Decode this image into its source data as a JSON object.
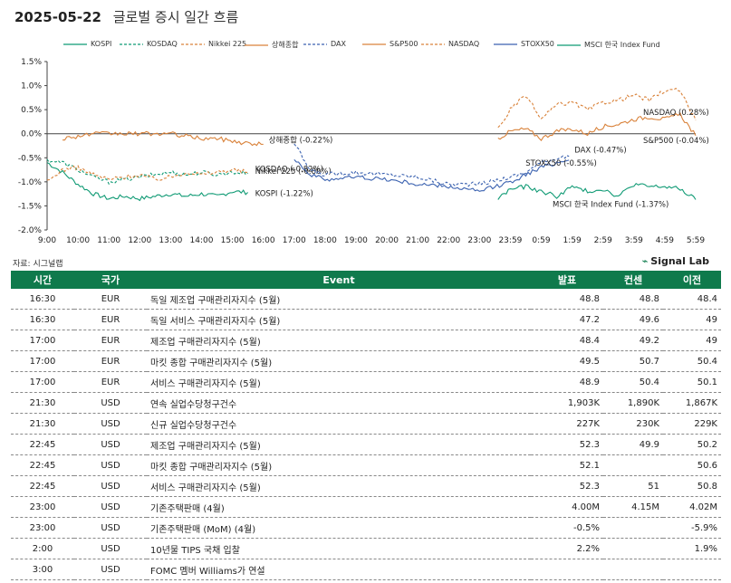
{
  "header": {
    "date": "2025-05-22",
    "title": "글로벌 증시 일간 흐름"
  },
  "source": "자료: 시그널랩",
  "brand": "Signal Lab",
  "chart_data": {
    "type": "line",
    "ylim": [
      -2.0,
      1.5
    ],
    "yticks": [
      "1.5%",
      "1.0%",
      "0.5%",
      "0.0%",
      "-0.5%",
      "-1.0%",
      "-1.5%",
      "-2.0%"
    ],
    "ytick_values": [
      1.5,
      1.0,
      0.5,
      0.0,
      -0.5,
      -1.0,
      -1.5,
      -2.0
    ],
    "x_labels": [
      "9:00",
      "10:00",
      "11:00",
      "12:00",
      "13:00",
      "14:00",
      "15:00",
      "16:00",
      "17:00",
      "18:00",
      "19:00",
      "20:00",
      "21:00",
      "22:00",
      "23:00",
      "23:59",
      "0:59",
      "1:59",
      "2:59",
      "3:59",
      "4:59",
      "5:59"
    ],
    "series": [
      {
        "name": "KOSPI",
        "color": "#0f9a74",
        "dash": "",
        "start": 0,
        "end": 6.5,
        "anchors": [
          [
            0,
            -0.6
          ],
          [
            0.5,
            -0.8
          ],
          [
            1,
            -1.05
          ],
          [
            1.5,
            -1.25
          ],
          [
            2,
            -1.35
          ],
          [
            2.5,
            -1.3
          ],
          [
            3,
            -1.35
          ],
          [
            3.5,
            -1.3
          ],
          [
            4,
            -1.25
          ],
          [
            4.5,
            -1.3
          ],
          [
            5,
            -1.25
          ],
          [
            5.5,
            -1.3
          ],
          [
            6,
            -1.2
          ],
          [
            6.5,
            -1.22
          ]
        ],
        "end_label": "KOSPI (-1.22%)"
      },
      {
        "name": "KOSDAQ",
        "color": "#0f9a74",
        "dash": "3,2",
        "start": 0,
        "end": 6.5,
        "anchors": [
          [
            0,
            -0.55
          ],
          [
            0.5,
            -0.6
          ],
          [
            1,
            -0.75
          ],
          [
            1.5,
            -0.9
          ],
          [
            2,
            -1.0
          ],
          [
            2.5,
            -0.95
          ],
          [
            3,
            -0.9
          ],
          [
            3.5,
            -0.85
          ],
          [
            4,
            -0.8
          ],
          [
            4.5,
            -0.85
          ],
          [
            5,
            -0.8
          ],
          [
            5.5,
            -0.85
          ],
          [
            6,
            -0.8
          ],
          [
            6.5,
            -0.82
          ]
        ],
        "end_label": "KOSDAQ (-0.82%)"
      },
      {
        "name": "Nikkei 225",
        "color": "#d9823a",
        "dash": "3,2",
        "start": 0,
        "end": 6.5,
        "anchors": [
          [
            0,
            -1.0
          ],
          [
            0.5,
            -0.75
          ],
          [
            1,
            -0.7
          ],
          [
            1.5,
            -0.85
          ],
          [
            2,
            -0.95
          ],
          [
            2.5,
            -0.9
          ],
          [
            3,
            -0.85
          ],
          [
            3.5,
            -0.95
          ],
          [
            4,
            -0.9
          ],
          [
            4.5,
            -0.8
          ],
          [
            5,
            -0.85
          ],
          [
            5.5,
            -0.8
          ],
          [
            6,
            -0.75
          ],
          [
            6.5,
            -0.8
          ]
        ],
        "end_label": "Nikkei 225 (-0.80%)"
      },
      {
        "name": "상해종합",
        "color": "#d9823a",
        "dash": "",
        "start": 0.5,
        "end": 7,
        "anchors": [
          [
            0.5,
            -0.1
          ],
          [
            1,
            -0.05
          ],
          [
            1.5,
            0.0
          ],
          [
            2,
            0.0
          ],
          [
            2.5,
            0.0
          ],
          [
            3,
            0.0
          ],
          [
            3.5,
            0.0
          ],
          [
            4,
            0.0
          ],
          [
            4.5,
            -0.05
          ],
          [
            5,
            -0.1
          ],
          [
            5.5,
            -0.1
          ],
          [
            6,
            -0.15
          ],
          [
            6.5,
            -0.2
          ],
          [
            7,
            -0.22
          ]
        ],
        "end_label": "상해종합 (-0.22%)"
      },
      {
        "name": "DAX",
        "color": "#3b62b0",
        "dash": "3,2",
        "start": 8,
        "end": 16.9,
        "anchors": [
          [
            8,
            -0.2
          ],
          [
            8.5,
            -0.75
          ],
          [
            9,
            -0.85
          ],
          [
            10,
            -0.8
          ],
          [
            11,
            -0.85
          ],
          [
            12,
            -0.9
          ],
          [
            13,
            -1.05
          ],
          [
            14,
            -1.05
          ],
          [
            15,
            -0.9
          ],
          [
            15.5,
            -0.8
          ],
          [
            16,
            -0.6
          ],
          [
            16.5,
            -0.5
          ],
          [
            16.9,
            -0.47
          ]
        ],
        "end_label": "DAX (-0.47%)"
      },
      {
        "name": "S&P500",
        "color": "#d9823a",
        "dash": "",
        "start": 14.6,
        "end": 21,
        "anchors": [
          [
            14.6,
            -0.1
          ],
          [
            15,
            0.05
          ],
          [
            15.5,
            0.1
          ],
          [
            16,
            -0.1
          ],
          [
            16.5,
            0.05
          ],
          [
            17,
            0.1
          ],
          [
            17.5,
            0.0
          ],
          [
            18,
            0.15
          ],
          [
            18.5,
            0.2
          ],
          [
            19,
            0.3
          ],
          [
            19.5,
            0.35
          ],
          [
            20,
            0.3
          ],
          [
            20.5,
            0.4
          ],
          [
            21,
            -0.04
          ]
        ],
        "end_label": "S&P500 (-0.04%)"
      },
      {
        "name": "NASDAQ",
        "color": "#d9823a",
        "dash": "3,2",
        "start": 14.6,
        "end": 21,
        "anchors": [
          [
            14.6,
            0.1
          ],
          [
            15,
            0.5
          ],
          [
            15.5,
            0.8
          ],
          [
            16,
            0.3
          ],
          [
            16.5,
            0.6
          ],
          [
            17,
            0.65
          ],
          [
            17.5,
            0.5
          ],
          [
            18,
            0.65
          ],
          [
            18.5,
            0.7
          ],
          [
            19,
            0.8
          ],
          [
            19.5,
            0.7
          ],
          [
            20,
            0.9
          ],
          [
            20.5,
            0.9
          ],
          [
            21,
            0.28
          ]
        ],
        "end_label": "NASDAQ (0.28%)"
      },
      {
        "name": "STOXX50",
        "color": "#3b62b0",
        "dash": "",
        "start": 8,
        "end": 16.9,
        "anchors": [
          [
            8,
            -0.5
          ],
          [
            8.5,
            -0.85
          ],
          [
            9,
            -0.95
          ],
          [
            10,
            -0.9
          ],
          [
            11,
            -0.95
          ],
          [
            12,
            -1.05
          ],
          [
            13,
            -1.1
          ],
          [
            14,
            -1.2
          ],
          [
            15,
            -1.0
          ],
          [
            15.5,
            -0.85
          ],
          [
            16,
            -0.7
          ],
          [
            16.5,
            -0.6
          ],
          [
            16.9,
            -0.55
          ]
        ],
        "end_label": "STOXX50 (-0.55%)"
      },
      {
        "name": "MSCI 한국 Index Fund",
        "color": "#0f9a74",
        "dash": "",
        "start": 14.6,
        "end": 21,
        "anchors": [
          [
            14.6,
            -1.35
          ],
          [
            15,
            -1.15
          ],
          [
            15.5,
            -1.1
          ],
          [
            16,
            -1.2
          ],
          [
            16.5,
            -1.3
          ],
          [
            17,
            -1.1
          ],
          [
            17.5,
            -1.2
          ],
          [
            18,
            -1.15
          ],
          [
            18.5,
            -1.3
          ],
          [
            19,
            -1.05
          ],
          [
            19.5,
            -1.1
          ],
          [
            20,
            -1.1
          ],
          [
            20.5,
            -1.15
          ],
          [
            21,
            -1.37
          ]
        ],
        "end_label": "MSCI 한국 Index Fund (-1.37%)"
      }
    ]
  },
  "table": {
    "headers": [
      "시간",
      "국가",
      "Event",
      "발표",
      "컨센",
      "이전"
    ],
    "rows": [
      [
        "16:30",
        "EUR",
        "독일 제조업 구매관리자지수 (5월)",
        "48.8",
        "48.8",
        "48.4"
      ],
      [
        "16:30",
        "EUR",
        "독일 서비스 구매관리자지수 (5월)",
        "47.2",
        "49.6",
        "49"
      ],
      [
        "17:00",
        "EUR",
        "제조업 구매관리자지수 (5월)",
        "48.4",
        "49.2",
        "49"
      ],
      [
        "17:00",
        "EUR",
        "마킷 종합 구매관리자지수 (5월)",
        "49.5",
        "50.7",
        "50.4"
      ],
      [
        "17:00",
        "EUR",
        "서비스 구매관리자지수 (5월)",
        "48.9",
        "50.4",
        "50.1"
      ],
      [
        "21:30",
        "USD",
        "연속 실업수당청구건수",
        "1,903K",
        "1,890K",
        "1,867K"
      ],
      [
        "21:30",
        "USD",
        "신규 실업수당청구건수",
        "227K",
        "230K",
        "229K"
      ],
      [
        "22:45",
        "USD",
        "제조업 구매관리자지수 (5월)",
        "52.3",
        "49.9",
        "50.2"
      ],
      [
        "22:45",
        "USD",
        "마킷 종합 구매관리자지수 (5월)",
        "52.1",
        "",
        "50.6"
      ],
      [
        "22:45",
        "USD",
        "서비스 구매관리자지수 (5월)",
        "52.3",
        "51",
        "50.8"
      ],
      [
        "23:00",
        "USD",
        "기존주택판매 (4월)",
        "4.00M",
        "4.15M",
        "4.02M"
      ],
      [
        "23:00",
        "USD",
        "기존주택판매 (MoM) (4월)",
        "-0.5%",
        "",
        "-5.9%"
      ],
      [
        "2:00",
        "USD",
        "10년물 TIPS 국채 입찰",
        "2.2%",
        "",
        "1.9%"
      ],
      [
        "3:00",
        "USD",
        "FOMC 멤버 Williams가 연설",
        "",
        "",
        ""
      ]
    ]
  }
}
